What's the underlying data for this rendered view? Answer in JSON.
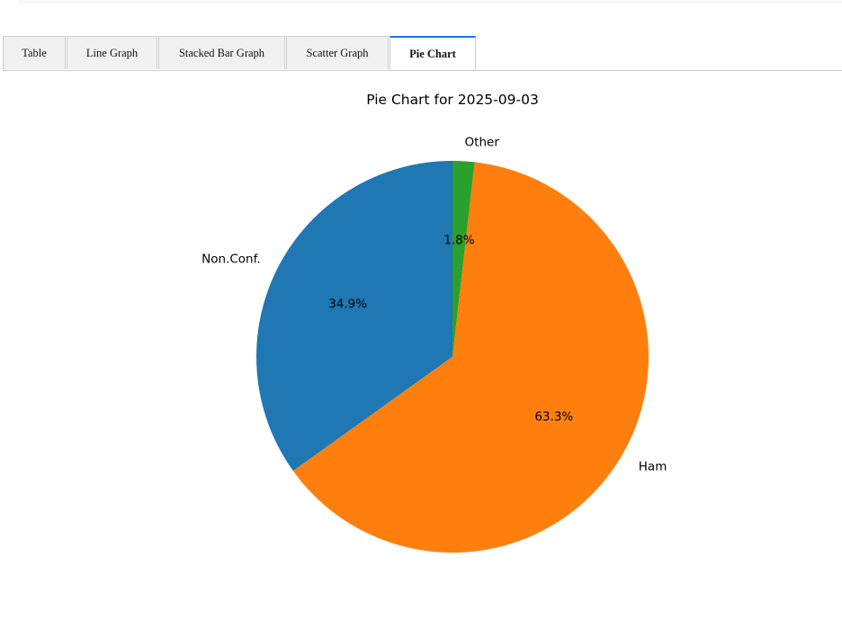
{
  "tabs": [
    {
      "label": "Table"
    },
    {
      "label": "Line Graph"
    },
    {
      "label": "Stacked Bar Graph"
    },
    {
      "label": "Scatter Graph"
    },
    {
      "label": "Pie Chart",
      "active": true
    }
  ],
  "chart_data": {
    "type": "pie",
    "title": "Pie Chart for 2025-09-03",
    "start_angle_deg": 90,
    "direction": "counterclockwise",
    "slices": [
      {
        "label": "Non.Conf.",
        "value": 34.9,
        "pct_label": "34.9%",
        "color": "#1f77b4"
      },
      {
        "label": "Ham",
        "value": 63.3,
        "pct_label": "63.3%",
        "color": "#ff7f0e"
      },
      {
        "label": "Other",
        "value": 1.8,
        "pct_label": "1.8%",
        "color": "#2ca02c"
      }
    ]
  }
}
